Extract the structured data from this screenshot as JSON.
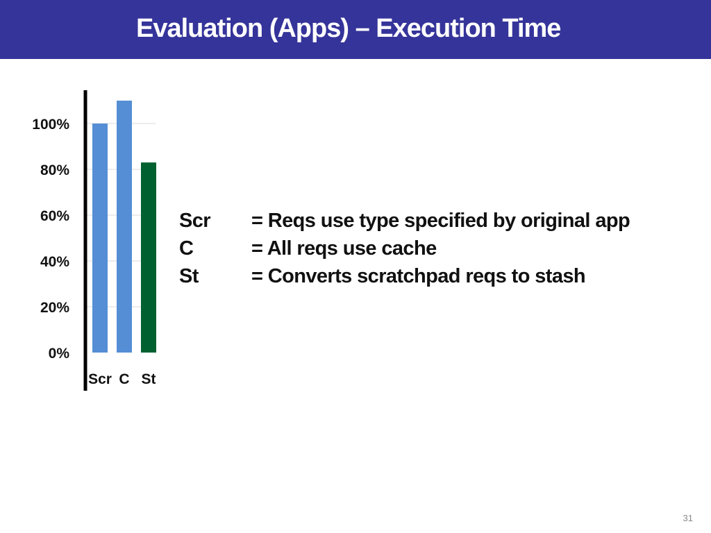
{
  "slide": {
    "title": "Evaluation (Apps) – Execution Time",
    "page_number": "31",
    "title_bar_color": "#35349a"
  },
  "legend": [
    {
      "key": "Scr",
      "description": "= Reqs use type specified by original app"
    },
    {
      "key": "C",
      "description": "= All reqs use cache"
    },
    {
      "key": "St",
      "description": "= Converts scratchpad reqs to stash"
    }
  ],
  "chart_data": {
    "type": "bar",
    "categories": [
      "Scr",
      "C",
      "St"
    ],
    "values": [
      100,
      110,
      83
    ],
    "colors": [
      "#558ed5",
      "#558ed5",
      "#006030"
    ],
    "ylim": [
      0,
      100
    ],
    "yticks": [
      0,
      20,
      40,
      60,
      80,
      100
    ],
    "ytick_labels": [
      "0%",
      "20%",
      "40%",
      "60%",
      "80%",
      "100%"
    ],
    "grid": true,
    "title": "",
    "xlabel": "",
    "ylabel": ""
  }
}
